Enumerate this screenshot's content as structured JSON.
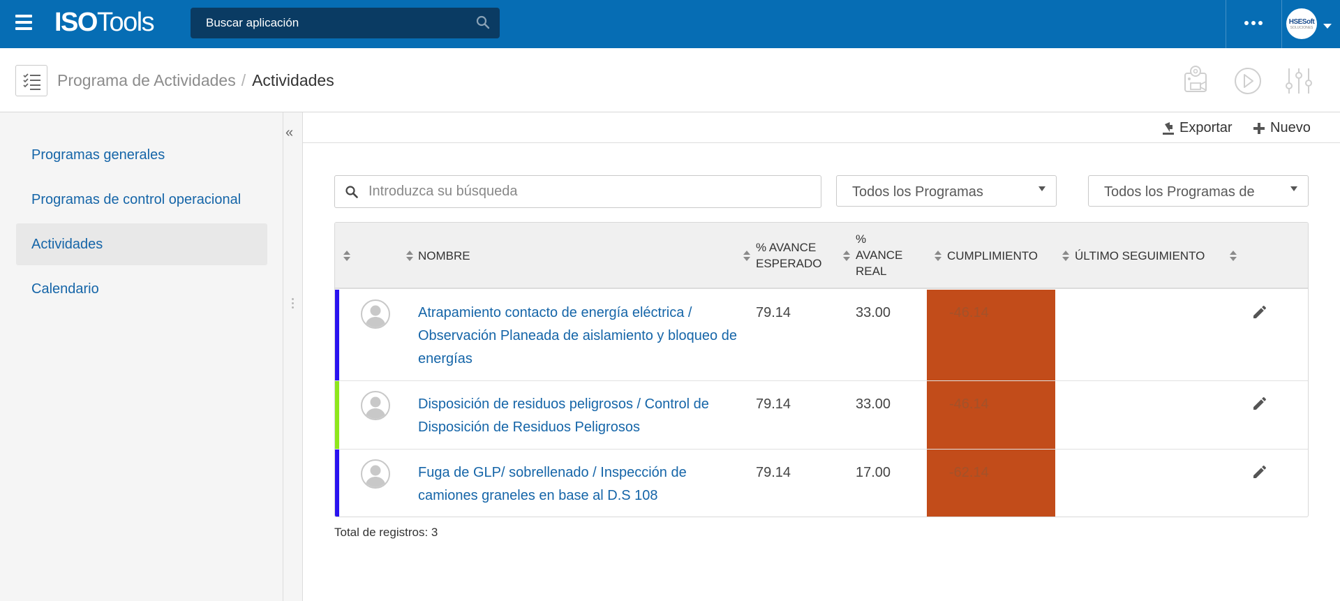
{
  "app": {
    "logo_bold": "ISO",
    "logo_thin": "Tools",
    "search_placeholder": "Buscar aplicación",
    "avatar_brand": "HSESoft",
    "avatar_brand_sub": "SOLUCIONES"
  },
  "header": {
    "breadcrumb_parent": "Programa de Actividades",
    "breadcrumb_sep": "/",
    "breadcrumb_current": "Actividades"
  },
  "sidebar": {
    "items": [
      {
        "label": "Programas generales",
        "active": false
      },
      {
        "label": "Programas de control operacional",
        "active": false
      },
      {
        "label": "Actividades",
        "active": true
      },
      {
        "label": "Calendario",
        "active": false
      }
    ]
  },
  "toolbar": {
    "export_label": "Exportar",
    "new_label": "Nuevo"
  },
  "filters": {
    "search_placeholder": "Introduzca su búsqueda",
    "programs_value": "Todos los Programas",
    "programs_de_value": "Todos los Programas de"
  },
  "table": {
    "headers": {
      "nombre": "NOMBRE",
      "avance_esperado_1": "% AVANCE",
      "avance_esperado_2": "ESPERADO",
      "avance_real_1": "%",
      "avance_real_2": "AVANCE",
      "avance_real_3": "REAL",
      "cumplimiento": "CUMPLIMIENTO",
      "ultimo_seguimiento": "ÚLTIMO SEGUIMIENTO"
    },
    "rows": [
      {
        "name": "Atrapamiento contacto de energía eléctrica / Observación Planeada de aislamiento y bloqueo de energías",
        "expected": "79.14",
        "real": "33.00",
        "compliance": "-46.14",
        "last_followup": "",
        "bar_color": "#2a13f0"
      },
      {
        "name": "Disposición de residuos peligrosos / Control de Disposición de Residuos Peligrosos",
        "expected": "79.14",
        "real": "33.00",
        "compliance": "-46.14",
        "last_followup": "",
        "bar_color": "#8ee61c"
      },
      {
        "name": "Fuga de GLP/ sobrellenado / Inspección de camiones graneles en base al D.S 108",
        "expected": "79.14",
        "real": "17.00",
        "compliance": "-62.14",
        "last_followup": "",
        "bar_color": "#2a13f0"
      }
    ],
    "compliance_color": "#c24c1a"
  },
  "footer": {
    "total_label": "Total de registros: 3"
  },
  "colors": {
    "topbar": "#066db4",
    "app_search_bg": "#0a3b63",
    "link": "#1565a8"
  }
}
